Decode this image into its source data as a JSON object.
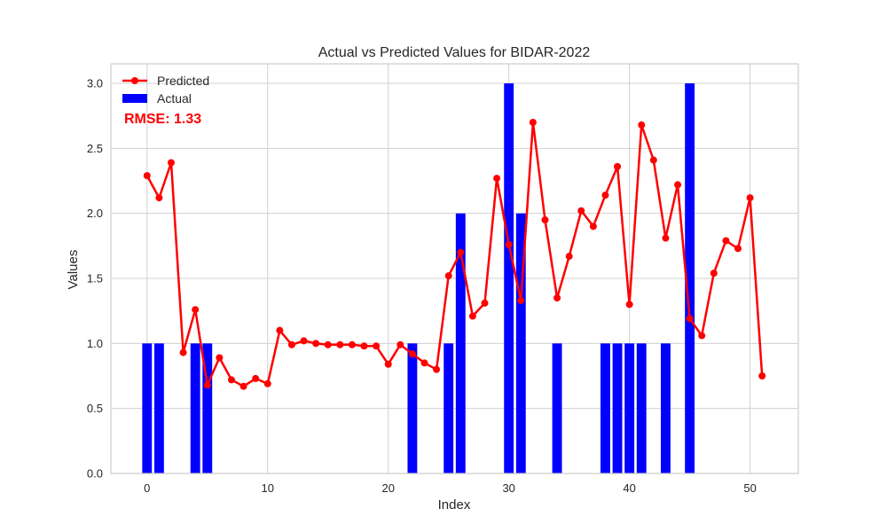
{
  "chart_data": {
    "type": "bar",
    "title": "Actual vs Predicted Values for BIDAR-2022",
    "xlabel": "Index",
    "ylabel": "Values",
    "xlim": [
      -3,
      54
    ],
    "ylim": [
      0,
      3.15
    ],
    "xticks": [
      0,
      10,
      20,
      30,
      40,
      50
    ],
    "yticks": [
      0.0,
      0.5,
      1.0,
      1.5,
      2.0,
      2.5,
      3.0
    ],
    "ytick_labels": [
      "0.0",
      "0.5",
      "1.0",
      "1.5",
      "2.0",
      "2.5",
      "3.0"
    ],
    "grid": true,
    "legend_position": "top-left",
    "annotation": "RMSE: 1.33",
    "colors": {
      "actual": "#0000ff",
      "predicted": "#ff0000",
      "annotation": "#ff0000",
      "grid": "#d0d0d0",
      "spine": "#cccccc"
    },
    "series": [
      {
        "name": "Predicted",
        "kind": "line",
        "x": [
          0,
          1,
          2,
          3,
          4,
          5,
          6,
          7,
          8,
          9,
          10,
          11,
          12,
          13,
          14,
          15,
          16,
          17,
          18,
          19,
          20,
          21,
          22,
          23,
          24,
          25,
          26,
          27,
          28,
          29,
          30,
          31,
          32,
          33,
          34,
          35,
          36,
          37,
          38,
          39,
          40,
          41,
          42,
          43,
          44,
          45,
          46,
          47,
          48,
          49,
          50,
          51
        ],
        "values": [
          2.29,
          2.12,
          2.39,
          0.93,
          1.26,
          0.68,
          0.89,
          0.72,
          0.67,
          0.73,
          0.69,
          1.1,
          0.99,
          1.02,
          1.0,
          0.99,
          0.99,
          0.99,
          0.98,
          0.98,
          0.84,
          0.99,
          0.92,
          0.85,
          0.8,
          1.52,
          1.7,
          1.21,
          1.31,
          2.27,
          1.76,
          1.33,
          2.7,
          1.95,
          1.35,
          1.67,
          2.02,
          1.9,
          2.14,
          2.36,
          1.3,
          2.68,
          2.41,
          1.81,
          2.22,
          1.19,
          1.06,
          1.54,
          1.79,
          1.73,
          2.12,
          0.75
        ]
      },
      {
        "name": "Actual",
        "kind": "bar",
        "x": [
          0,
          1,
          4,
          5,
          22,
          25,
          26,
          30,
          31,
          34,
          38,
          39,
          40,
          41,
          43,
          45
        ],
        "values": [
          1,
          1,
          1,
          1,
          1,
          1,
          2,
          3,
          2,
          1,
          1,
          1,
          1,
          1,
          1,
          3
        ]
      }
    ]
  }
}
